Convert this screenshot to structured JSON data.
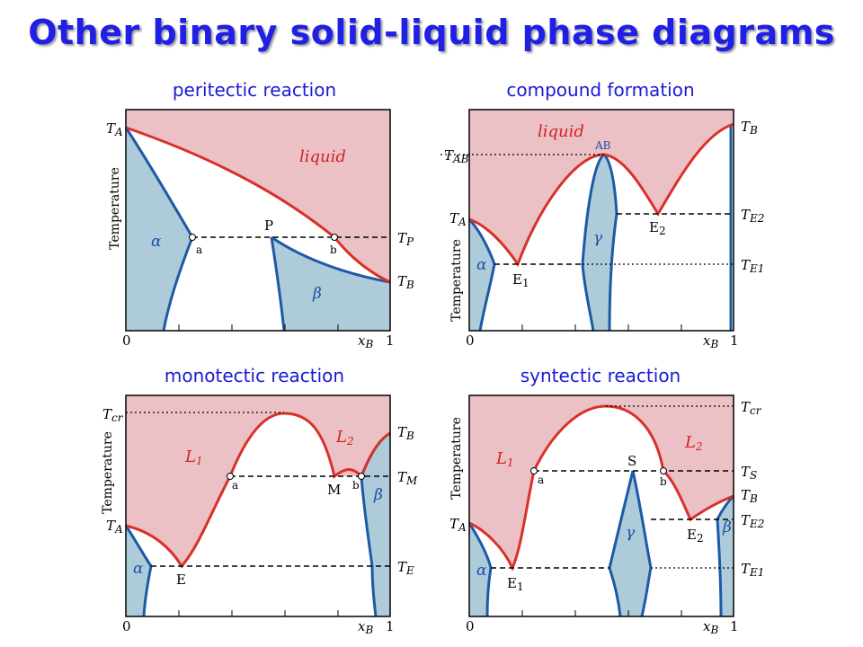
{
  "title": "Other binary solid-liquid phase diagrams",
  "colors": {
    "liquid_fill": "#ecc1c6",
    "solid_fill": "#aecbd9",
    "liquidus": "#d8312a",
    "solidus": "#1c5aa6",
    "title": "#1f1fe6"
  },
  "panels": {
    "peritectic": {
      "title": "peritectic reaction",
      "ylabel": "Temperature",
      "x_min": "0",
      "x_label": "x",
      "x_label_sub": "B",
      "x_max": "1",
      "T_left": "T",
      "T_left_sub": "A",
      "T_right_1": "T",
      "T_right_1_sub": "P",
      "T_right_2": "T",
      "T_right_2_sub": "B",
      "region_liquid": "liquid",
      "phase_alpha": "α",
      "phase_beta": "β",
      "point_a": "a",
      "point_b": "b",
      "point_P": "P"
    },
    "compound": {
      "title": "compound formation",
      "ylabel": "Temperature",
      "x_min": "0",
      "x_label": "x",
      "x_label_sub": "B",
      "x_max": "1",
      "T_left_1": "T",
      "T_left_1_sub": "AB",
      "T_left_2": "T",
      "T_left_2_sub": "A",
      "T_right_1": "T",
      "T_right_1_sub": "B",
      "T_right_2": "T",
      "T_right_2_sub": "E2",
      "T_right_3": "T",
      "T_right_3_sub": "E1",
      "region_liquid": "liquid",
      "compound_label": "AB",
      "phase_alpha": "α",
      "phase_gamma": "γ",
      "eutectic_1": "E",
      "eutectic_1_sub": "1",
      "eutectic_2": "E",
      "eutectic_2_sub": "2"
    },
    "monotectic": {
      "title": "monotectic reaction",
      "ylabel": "Temperature",
      "x_min": "0",
      "x_label": "x",
      "x_label_sub": "B",
      "x_max": "1",
      "T_left_1": "T",
      "T_left_1_sub": "cr",
      "T_left_2": "T",
      "T_left_2_sub": "A",
      "T_right_1": "T",
      "T_right_1_sub": "B",
      "T_right_2": "T",
      "T_right_2_sub": "M",
      "T_right_3": "T",
      "T_right_3_sub": "E",
      "liquid_1": "L",
      "liquid_1_sub": "1",
      "liquid_2": "L",
      "liquid_2_sub": "2",
      "phase_alpha": "α",
      "phase_beta": "β",
      "point_a": "a",
      "point_b": "b",
      "point_M": "M",
      "point_E": "E"
    },
    "syntectic": {
      "title": "syntectic reaction",
      "ylabel": "Temperature",
      "x_min": "0",
      "x_label": "x",
      "x_label_sub": "B",
      "x_max": "1",
      "T_left": "T",
      "T_left_sub": "A",
      "T_right_1": "T",
      "T_right_1_sub": "cr",
      "T_right_2": "T",
      "T_right_2_sub": "S",
      "T_right_3": "T",
      "T_right_3_sub": "B",
      "T_right_4": "T",
      "T_right_4_sub": "E2",
      "T_right_5": "T",
      "T_right_5_sub": "E1",
      "liquid_1": "L",
      "liquid_1_sub": "1",
      "liquid_2": "L",
      "liquid_2_sub": "2",
      "phase_alpha": "α",
      "phase_beta": "β",
      "phase_gamma": "γ",
      "point_a": "a",
      "point_b": "b",
      "point_S": "S",
      "eutectic_1": "E",
      "eutectic_1_sub": "1",
      "eutectic_2": "E",
      "eutectic_2_sub": "2"
    }
  }
}
